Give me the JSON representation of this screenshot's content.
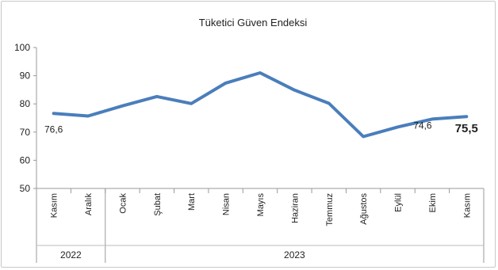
{
  "chart_data": {
    "type": "line",
    "title": "Tüketici Güven Endeksi",
    "categories": [
      "Kasım",
      "Aralık",
      "Ocak",
      "Şubat",
      "Mart",
      "Nisan",
      "Mayıs",
      "Haziran",
      "Temmuz",
      "Ağustos",
      "Eylül",
      "Ekim",
      "Kasım"
    ],
    "groups": [
      {
        "label": "2022",
        "count": 2
      },
      {
        "label": "2023",
        "count": 11
      }
    ],
    "series": [
      {
        "values": [
          76.6,
          75.7,
          79.3,
          82.6,
          80.1,
          87.4,
          91.0,
          84.9,
          80.2,
          68.4,
          71.8,
          74.6,
          75.5
        ],
        "color": "#4a7ebb"
      }
    ],
    "data_labels": [
      {
        "index": 0,
        "text": "76,6",
        "bold": false
      },
      {
        "index": 11,
        "text": "74,6",
        "bold": false
      },
      {
        "index": 12,
        "text": "75,5",
        "bold": true
      }
    ],
    "ylim": [
      50,
      100
    ],
    "yticks": [
      50,
      60,
      70,
      80,
      90,
      100
    ],
    "grid": false,
    "legend": "none"
  }
}
